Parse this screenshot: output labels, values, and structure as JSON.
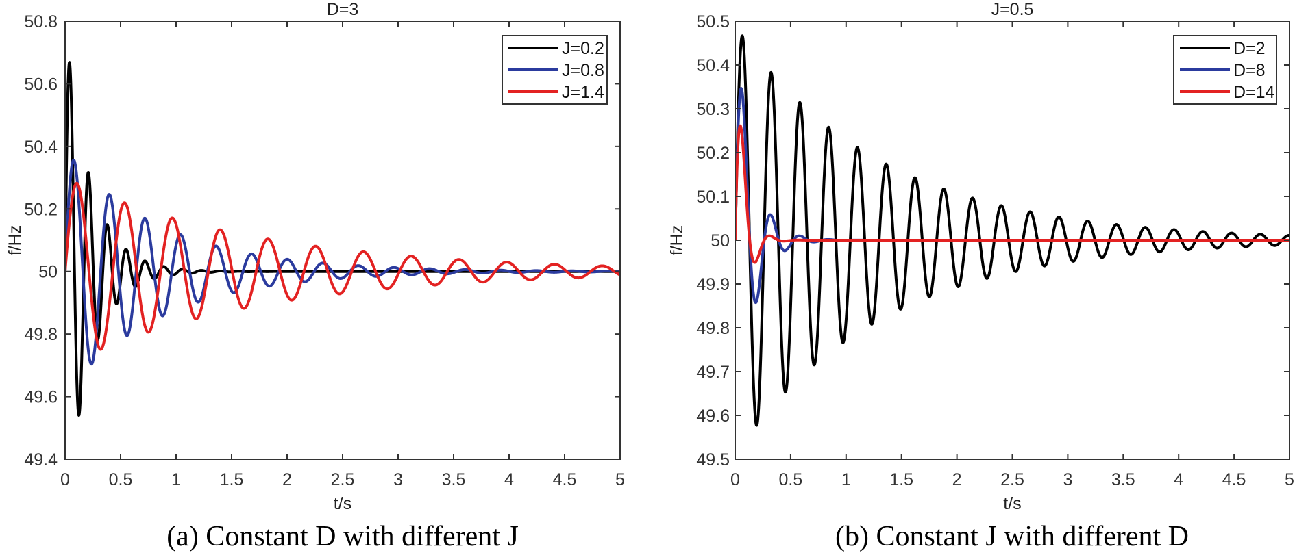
{
  "chart_data": [
    {
      "type": "line",
      "title": "D=3",
      "xlabel": "t/s",
      "ylabel": "f/Hz",
      "xlim": [
        0,
        5
      ],
      "ylim": [
        49.4,
        50.8
      ],
      "xticks": [
        "0",
        "0.5",
        "1",
        "1.5",
        "2",
        "2.5",
        "3",
        "3.5",
        "4",
        "4.5",
        "5"
      ],
      "yticks": [
        "49.4",
        "49.6",
        "49.8",
        "50",
        "50.2",
        "50.4",
        "50.6",
        "50.8"
      ],
      "grid": false,
      "legend_position": "top-right",
      "caption": "(a) Constant D with different J",
      "series": [
        {
          "name": "J=0.2",
          "color": "#000000",
          "model": "damped-sine",
          "baseline": 50,
          "amplitude": 0.8,
          "decay": 4.4,
          "omega": 37,
          "first_peak": [
            0.05,
            50.66
          ],
          "first_trough": [
            0.13,
            49.54
          ]
        },
        {
          "name": "J=0.8",
          "color": "#2b3b9e",
          "model": "damped-sine",
          "baseline": 50,
          "amplitude": 0.39,
          "decay": 1.15,
          "omega": 19.6,
          "first_peak": [
            0.09,
            50.36
          ],
          "first_trough": [
            0.24,
            49.69
          ]
        },
        {
          "name": "J=1.4",
          "color": "#e32222",
          "model": "damped-sine",
          "baseline": 50,
          "amplitude": 0.3,
          "decay": 0.58,
          "omega": 14.6,
          "first_peak": [
            0.1,
            50.28
          ],
          "first_trough": [
            0.31,
            49.75
          ]
        }
      ]
    },
    {
      "type": "line",
      "title": "J=0.5",
      "xlabel": "t/s",
      "ylabel": "f/Hz",
      "xlim": [
        0,
        5
      ],
      "ylim": [
        49.5,
        50.5
      ],
      "xticks": [
        "0",
        "0.5",
        "1",
        "1.5",
        "2",
        "2.5",
        "3",
        "3.5",
        "4",
        "4.5",
        "5"
      ],
      "yticks": [
        "49.5",
        "49.6",
        "49.7",
        "49.8",
        "49.9",
        "50",
        "50.1",
        "50.2",
        "50.3",
        "50.4",
        "50.5"
      ],
      "grid": false,
      "legend_position": "top-right",
      "caption": "(b) Constant J with different D",
      "series": [
        {
          "name": "D=2",
          "color": "#000000",
          "model": "damped-sine",
          "baseline": 50,
          "amplitude": 0.49,
          "decay": 0.76,
          "omega": 24.2,
          "first_peak": [
            0.05,
            50.47
          ],
          "first_trough": [
            0.19,
            49.56
          ]
        },
        {
          "name": "D=8",
          "color": "#2b3b9e",
          "model": "damped-sine",
          "baseline": 50,
          "amplitude": 0.52,
          "decay": 6.8,
          "omega": 24,
          "first_peak": [
            0.05,
            50.34
          ],
          "first_trough": [
            0.19,
            49.86
          ]
        },
        {
          "name": "D=14",
          "color": "#e32222",
          "model": "damped-sine",
          "baseline": 50,
          "amplitude": 0.52,
          "decay": 12.5,
          "omega": 24,
          "first_peak": [
            0.05,
            50.26
          ],
          "first_trough": [
            0.2,
            49.96
          ]
        }
      ]
    }
  ]
}
